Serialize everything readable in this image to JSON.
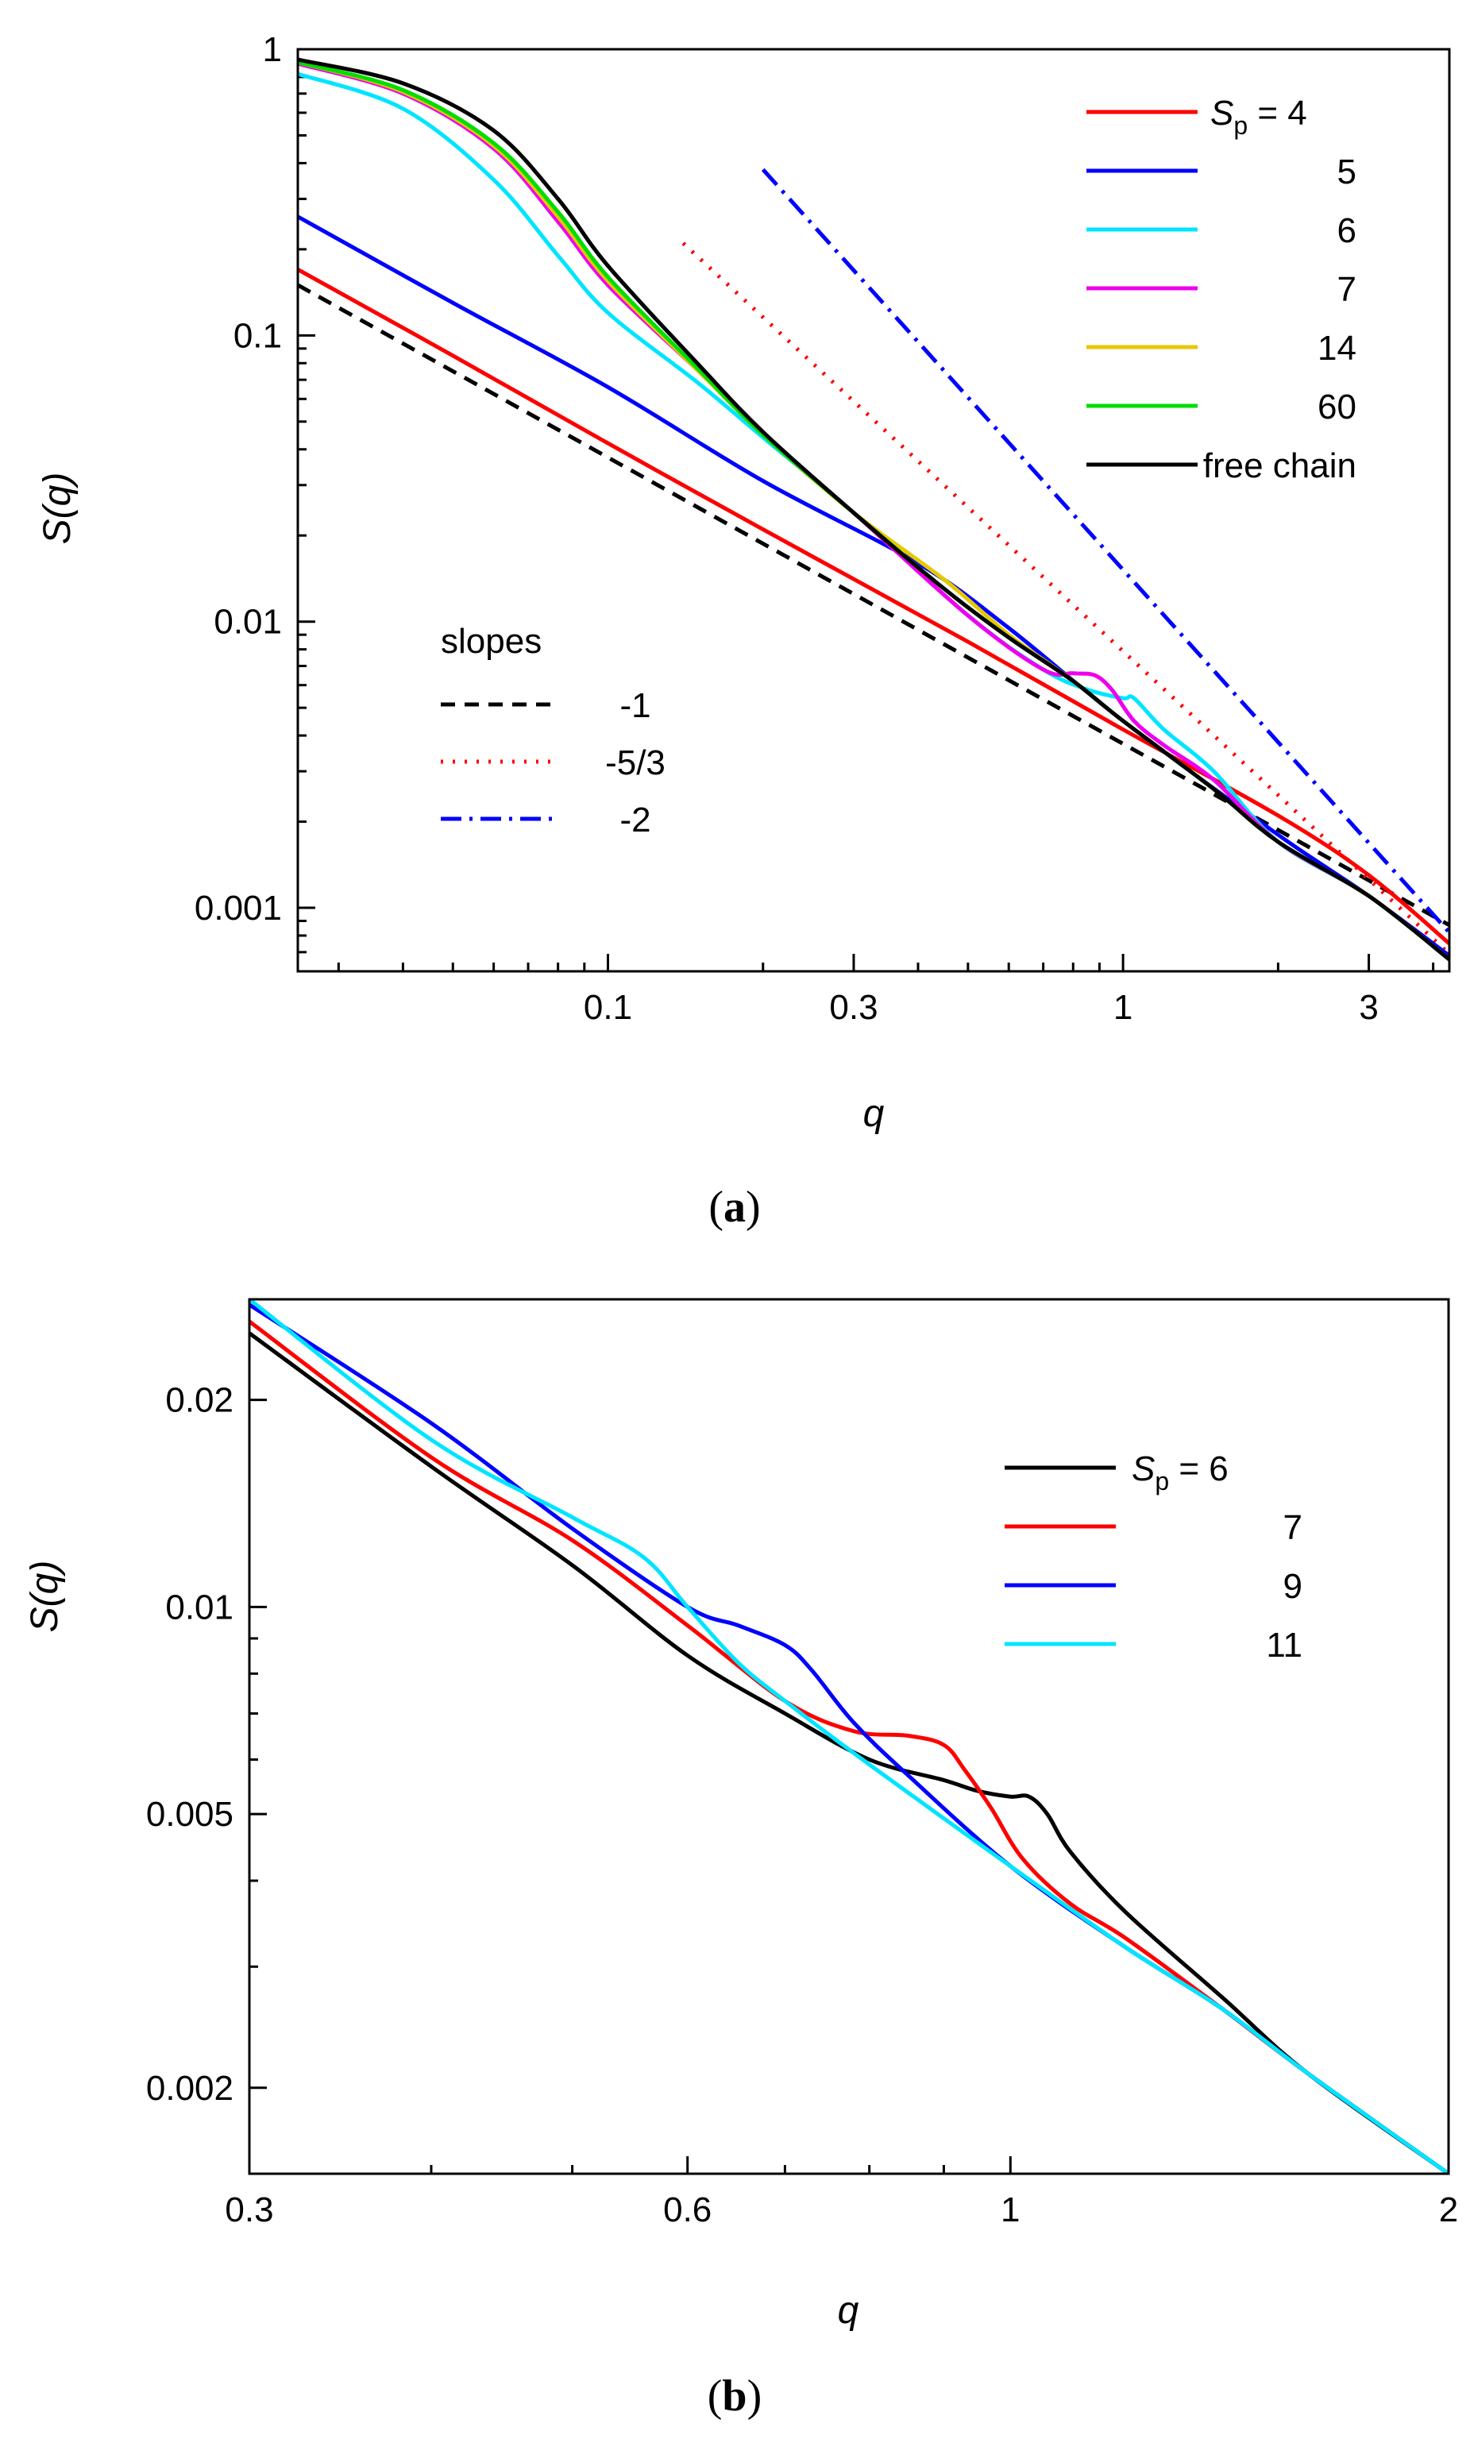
{
  "chart_data": [
    {
      "panel": "a",
      "type": "line",
      "xlabel": "q",
      "ylabel": "S(q)",
      "xscale": "log",
      "yscale": "log",
      "xlim": [
        0.025,
        4.3
      ],
      "ylim": [
        0.0006,
        1.0
      ],
      "xticks": [
        {
          "value": 0.1,
          "label": "0.1"
        },
        {
          "value": 0.3,
          "label": "0.3"
        },
        {
          "value": 1,
          "label": "1"
        },
        {
          "value": 3,
          "label": "3"
        }
      ],
      "yticks": [
        {
          "value": 0.001,
          "label": "0.001"
        },
        {
          "value": 0.01,
          "label": "0.01"
        },
        {
          "value": 0.1,
          "label": "0.1"
        },
        {
          "value": 1,
          "label": "1"
        }
      ],
      "legend_position": "top-right",
      "legend_title_prefix": "S",
      "legend_title_sub": "p",
      "series": [
        {
          "name": "= 4",
          "color": "#ff0000",
          "style": "solid",
          "x": [
            0.025,
            0.05,
            0.1,
            0.2,
            0.5,
            1,
            2,
            3,
            4.3
          ],
          "y": [
            0.17,
            0.085,
            0.042,
            0.021,
            0.0085,
            0.0042,
            0.0021,
            0.0013,
            0.00075
          ]
        },
        {
          "name": "5",
          "color": "#0000ff",
          "style": "solid",
          "x": [
            0.025,
            0.05,
            0.1,
            0.2,
            0.4,
            0.6,
            1,
            2,
            3,
            4.3
          ],
          "y": [
            0.26,
            0.13,
            0.066,
            0.031,
            0.016,
            0.0095,
            0.0045,
            0.0018,
            0.0011,
            0.00068
          ]
        },
        {
          "name": "6",
          "color": "#00e5ff",
          "style": "solid",
          "x": [
            0.025,
            0.04,
            0.06,
            0.08,
            0.1,
            0.15,
            0.2,
            0.3,
            0.5,
            0.7,
            0.85,
            1.0,
            1.05,
            1.2,
            1.5,
            2,
            3,
            4.3
          ],
          "y": [
            0.82,
            0.62,
            0.35,
            0.19,
            0.12,
            0.068,
            0.044,
            0.024,
            0.0105,
            0.0068,
            0.0058,
            0.0054,
            0.0054,
            0.0042,
            0.003,
            0.0017,
            0.0011,
            0.00066
          ]
        },
        {
          "name": "7",
          "color": "#ee00ee",
          "style": "solid",
          "x": [
            0.025,
            0.04,
            0.06,
            0.08,
            0.1,
            0.15,
            0.2,
            0.3,
            0.5,
            0.7,
            0.8,
            0.88,
            0.95,
            1.05,
            1.2,
            1.5,
            2,
            3,
            4.3
          ],
          "y": [
            0.89,
            0.7,
            0.45,
            0.25,
            0.15,
            0.075,
            0.045,
            0.024,
            0.0105,
            0.0068,
            0.0066,
            0.0065,
            0.0058,
            0.0045,
            0.0037,
            0.0028,
            0.0017,
            0.0011,
            0.00066
          ]
        },
        {
          "name": "14",
          "color": "#e6c800",
          "style": "solid",
          "x": [
            0.025,
            0.04,
            0.06,
            0.08,
            0.1,
            0.15,
            0.2,
            0.3,
            0.45,
            0.6,
            0.8,
            1,
            1.5,
            2,
            3,
            4.3
          ],
          "y": [
            0.9,
            0.71,
            0.46,
            0.26,
            0.155,
            0.075,
            0.045,
            0.024,
            0.014,
            0.009,
            0.0062,
            0.0045,
            0.0026,
            0.0017,
            0.0011,
            0.00066
          ]
        },
        {
          "name": "60",
          "color": "#00dd00",
          "style": "solid",
          "x": [
            0.025,
            0.04,
            0.06,
            0.08,
            0.1,
            0.15,
            0.2,
            0.3,
            0.45,
            0.6,
            0.8,
            1,
            1.5,
            2,
            3,
            4.3
          ],
          "y": [
            0.9,
            0.72,
            0.47,
            0.27,
            0.16,
            0.076,
            0.045,
            0.024,
            0.013,
            0.0088,
            0.0062,
            0.0045,
            0.0026,
            0.0017,
            0.0011,
            0.00066
          ]
        },
        {
          "name": "free chain",
          "color": "#000000",
          "style": "solid",
          "x": [
            0.025,
            0.04,
            0.06,
            0.08,
            0.1,
            0.15,
            0.2,
            0.3,
            0.45,
            0.6,
            0.8,
            1,
            1.5,
            2,
            3,
            4.3
          ],
          "y": [
            0.92,
            0.76,
            0.52,
            0.3,
            0.175,
            0.079,
            0.046,
            0.024,
            0.013,
            0.0088,
            0.0062,
            0.0045,
            0.0026,
            0.0017,
            0.0011,
            0.00066
          ]
        }
      ],
      "slopes_title": "slopes",
      "slope_guides": [
        {
          "label": "-1",
          "color": "#000000",
          "style": "dashed",
          "x": [
            0.025,
            4.3
          ],
          "y": [
            0.15,
            0.00087
          ]
        },
        {
          "label": "-5/3",
          "color": "#ff0000",
          "style": "dotted",
          "x": [
            0.14,
            4.3
          ],
          "y": [
            0.21,
            0.00069
          ]
        },
        {
          "label": "-2",
          "color": "#0000ff",
          "style": "dashdot",
          "x": [
            0.2,
            4.3
          ],
          "y": [
            0.38,
            0.00082
          ]
        }
      ],
      "panel_label": "a"
    },
    {
      "panel": "b",
      "type": "line",
      "xlabel": "q",
      "ylabel": "S(q)",
      "xscale": "log",
      "yscale": "log",
      "xlim": [
        0.3,
        2.0
      ],
      "ylim": [
        0.0015,
        0.028
      ],
      "xticks": [
        {
          "value": 0.3,
          "label": "0.3"
        },
        {
          "value": 0.6,
          "label": "0.6"
        },
        {
          "value": 1,
          "label": "1"
        },
        {
          "value": 2,
          "label": "2"
        }
      ],
      "yticks": [
        {
          "value": 0.002,
          "label": "0.002"
        },
        {
          "value": 0.005,
          "label": "0.005"
        },
        {
          "value": 0.01,
          "label": "0.01"
        },
        {
          "value": 0.02,
          "label": "0.02"
        }
      ],
      "legend_position": "top-right",
      "legend_title_prefix": "S",
      "legend_title_sub": "p",
      "series": [
        {
          "name": "= 6",
          "color": "#000000",
          "style": "solid",
          "x": [
            0.3,
            0.4,
            0.5,
            0.6,
            0.7,
            0.8,
            0.9,
            0.95,
            1.0,
            1.03,
            1.06,
            1.1,
            1.2,
            1.4,
            1.6,
            2.0
          ],
          "y": [
            0.025,
            0.016,
            0.0115,
            0.0085,
            0.007,
            0.006,
            0.0056,
            0.0054,
            0.0053,
            0.0053,
            0.005,
            0.0044,
            0.0036,
            0.0027,
            0.0021,
            0.0015
          ]
        },
        {
          "name": "7",
          "color": "#ff0000",
          "style": "solid",
          "x": [
            0.3,
            0.4,
            0.5,
            0.6,
            0.7,
            0.78,
            0.85,
            0.9,
            0.93,
            0.97,
            1.02,
            1.1,
            1.2,
            1.4,
            1.6,
            2.0
          ],
          "y": [
            0.026,
            0.0165,
            0.0125,
            0.0094,
            0.0073,
            0.0066,
            0.0065,
            0.0063,
            0.0058,
            0.0051,
            0.0043,
            0.0037,
            0.0033,
            0.0026,
            0.0021,
            0.0015
          ]
        },
        {
          "name": "9",
          "color": "#0000ff",
          "style": "solid",
          "x": [
            0.3,
            0.4,
            0.5,
            0.6,
            0.65,
            0.7,
            0.73,
            0.78,
            0.85,
            1.0,
            1.2,
            1.4,
            1.6,
            2.0
          ],
          "y": [
            0.0275,
            0.0185,
            0.013,
            0.01,
            0.0094,
            0.0088,
            0.0081,
            0.0068,
            0.0057,
            0.0042,
            0.0032,
            0.0026,
            0.0021,
            0.0015
          ]
        },
        {
          "name": "11",
          "color": "#00e5ff",
          "style": "solid",
          "x": [
            0.3,
            0.4,
            0.5,
            0.56,
            0.6,
            0.65,
            0.7,
            0.8,
            1.0,
            1.2,
            1.4,
            1.6,
            2.0
          ],
          "y": [
            0.028,
            0.0175,
            0.0135,
            0.0118,
            0.01,
            0.0083,
            0.0073,
            0.0059,
            0.0042,
            0.0032,
            0.0026,
            0.0021,
            0.0015
          ]
        }
      ],
      "panel_label": "b"
    }
  ]
}
